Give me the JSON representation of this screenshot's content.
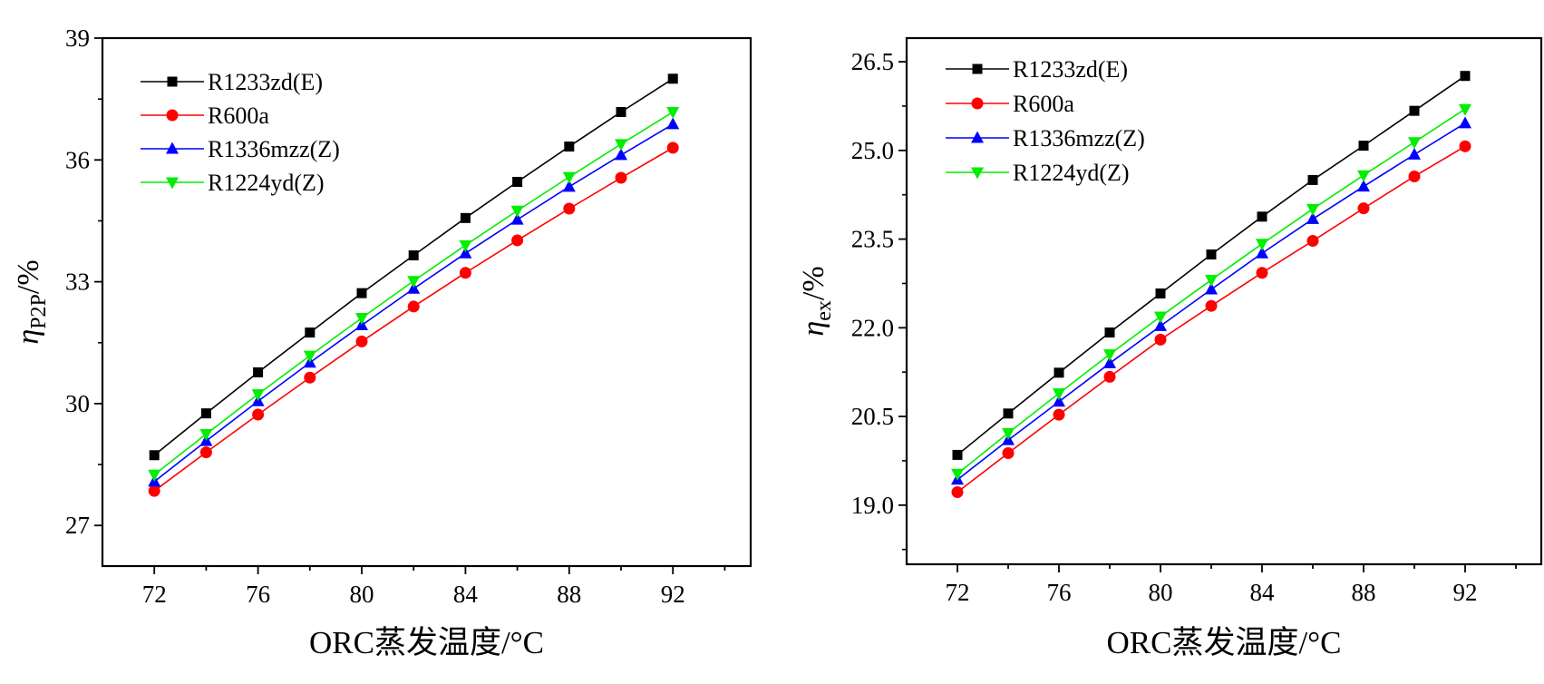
{
  "chart_data": [
    {
      "type": "line",
      "panel": "left",
      "xlabel": "ORC蒸发温度/°C",
      "ylabel": {
        "symbol": "η",
        "subscript": "P2P",
        "unit": "/%"
      },
      "xlim": [
        70,
        95
      ],
      "ylim": [
        26,
        39
      ],
      "xticks": [
        72,
        76,
        80,
        84,
        88,
        92
      ],
      "yticks": [
        "27",
        "30",
        "33",
        "36",
        "39"
      ],
      "ytick_values": [
        27,
        30,
        33,
        36,
        39
      ],
      "x": [
        72,
        74,
        76,
        78,
        80,
        82,
        84,
        86,
        88,
        90,
        92
      ],
      "legend_position": "top-left",
      "series": [
        {
          "name": "R1233zd(E)",
          "color": "#000000",
          "marker": "square",
          "values": [
            28.73,
            29.76,
            30.77,
            31.75,
            32.72,
            33.65,
            34.57,
            35.46,
            36.33,
            37.18,
            38.0
          ]
        },
        {
          "name": "R600a",
          "color": "#ff0000",
          "marker": "circle",
          "values": [
            27.85,
            28.8,
            29.73,
            30.64,
            31.53,
            32.39,
            33.22,
            34.02,
            34.8,
            35.56,
            36.3
          ]
        },
        {
          "name": "R1336mzz(Z)",
          "color": "#0000ff",
          "marker": "triangle-up",
          "values": [
            28.08,
            29.08,
            30.06,
            31.01,
            31.93,
            32.83,
            33.7,
            34.53,
            35.34,
            36.12,
            36.88
          ]
        },
        {
          "name": "R1224yd(Z)",
          "color": "#00ee00",
          "marker": "triangle-down",
          "values": [
            28.25,
            29.25,
            30.23,
            31.18,
            32.11,
            33.02,
            33.9,
            34.75,
            35.58,
            36.39,
            37.18
          ]
        }
      ]
    },
    {
      "type": "line",
      "panel": "right",
      "xlabel": "ORC蒸发温度/°C",
      "ylabel": {
        "symbol": "η",
        "subscript": "ex",
        "unit": "/%"
      },
      "xlim": [
        70,
        95
      ],
      "ylim": [
        18.0,
        26.9
      ],
      "xticks": [
        72,
        76,
        80,
        84,
        88,
        92
      ],
      "yticks": [
        "19.0",
        "20.5",
        "22.0",
        "23.5",
        "25.0",
        "26.5"
      ],
      "ytick_values": [
        19.0,
        20.5,
        22.0,
        23.5,
        25.0,
        26.5
      ],
      "x": [
        72,
        74,
        76,
        78,
        80,
        82,
        84,
        86,
        88,
        90,
        92
      ],
      "legend_position": "top-left",
      "series": [
        {
          "name": "R1233zd(E)",
          "color": "#000000",
          "marker": "square",
          "values": [
            19.85,
            20.55,
            21.24,
            21.92,
            22.58,
            23.24,
            23.88,
            24.5,
            25.08,
            25.67,
            26.26
          ]
        },
        {
          "name": "R600a",
          "color": "#ff0000",
          "marker": "circle",
          "values": [
            19.22,
            19.88,
            20.53,
            21.17,
            21.8,
            22.37,
            22.93,
            23.47,
            24.02,
            24.56,
            25.07
          ]
        },
        {
          "name": "R1336mzz(Z)",
          "color": "#0000ff",
          "marker": "triangle-up",
          "values": [
            19.43,
            20.1,
            20.75,
            21.4,
            22.03,
            22.65,
            23.26,
            23.84,
            24.39,
            24.93,
            25.46
          ]
        },
        {
          "name": "R1224yd(Z)",
          "color": "#00ee00",
          "marker": "triangle-down",
          "values": [
            19.53,
            20.22,
            20.89,
            21.55,
            22.19,
            22.81,
            23.42,
            24.01,
            24.58,
            25.14,
            25.7
          ]
        }
      ]
    }
  ]
}
